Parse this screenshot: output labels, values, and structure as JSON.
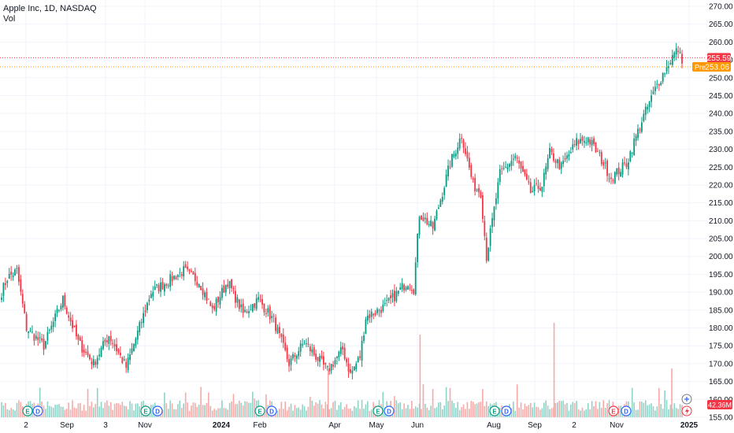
{
  "header": {
    "symbol_line": "Apple Inc, 1D, NASDAQ",
    "volume_label": "Vol"
  },
  "price_badges": {
    "last": "255.59",
    "pre_label": "Pre",
    "pre": "253.06",
    "volume": "42.36M"
  },
  "colors": {
    "up": "#089981",
    "down": "#f23645",
    "pre": "#ff9800",
    "grid": "#f0f3fa"
  },
  "event_markers": {
    "earnings": "E",
    "dividend": "D"
  },
  "chart_data": {
    "type": "candlestick",
    "title": "Apple Inc, 1D, NASDAQ",
    "ylim": [
      155,
      270
    ],
    "y_ticks": [
      270,
      265,
      260,
      255,
      250,
      245,
      240,
      235,
      230,
      225,
      220,
      215,
      210,
      205,
      200,
      195,
      190,
      185,
      180,
      175,
      170,
      165,
      160,
      155
    ],
    "x_labels": [
      {
        "label": "2",
        "bold": false
      },
      {
        "label": "Sep",
        "bold": false
      },
      {
        "label": "3",
        "bold": false
      },
      {
        "label": "Nov",
        "bold": false
      },
      {
        "label": "2024",
        "bold": true
      },
      {
        "label": "Feb",
        "bold": false
      },
      {
        "label": "Apr",
        "bold": false
      },
      {
        "label": "May",
        "bold": false
      },
      {
        "label": "Jun",
        "bold": false
      },
      {
        "label": "Aug",
        "bold": false
      },
      {
        "label": "Sep",
        "bold": false
      },
      {
        "label": "2",
        "bold": false
      },
      {
        "label": "Nov",
        "bold": false
      },
      {
        "label": "2025",
        "bold": true
      }
    ],
    "grid": true,
    "anchors": [
      {
        "idx": 0,
        "price": 190
      },
      {
        "idx": 3,
        "price": 194
      },
      {
        "idx": 8,
        "price": 196
      },
      {
        "idx": 13,
        "price": 180
      },
      {
        "idx": 22,
        "price": 175
      },
      {
        "idx": 32,
        "price": 188
      },
      {
        "idx": 40,
        "price": 176
      },
      {
        "idx": 48,
        "price": 170
      },
      {
        "idx": 56,
        "price": 178
      },
      {
        "idx": 65,
        "price": 169
      },
      {
        "idx": 78,
        "price": 190
      },
      {
        "idx": 95,
        "price": 196
      },
      {
        "idx": 103,
        "price": 193
      },
      {
        "idx": 110,
        "price": 185
      },
      {
        "idx": 118,
        "price": 193
      },
      {
        "idx": 126,
        "price": 184
      },
      {
        "idx": 134,
        "price": 188
      },
      {
        "idx": 142,
        "price": 182
      },
      {
        "idx": 150,
        "price": 170
      },
      {
        "idx": 158,
        "price": 176
      },
      {
        "idx": 170,
        "price": 168
      },
      {
        "idx": 178,
        "price": 174
      },
      {
        "idx": 182,
        "price": 167
      },
      {
        "idx": 187,
        "price": 172
      },
      {
        "idx": 190,
        "price": 183
      },
      {
        "idx": 200,
        "price": 186
      },
      {
        "idx": 212,
        "price": 193
      },
      {
        "idx": 215,
        "price": 191
      },
      {
        "idx": 218,
        "price": 212
      },
      {
        "idx": 225,
        "price": 208
      },
      {
        "idx": 234,
        "price": 226
      },
      {
        "idx": 240,
        "price": 234
      },
      {
        "idx": 246,
        "price": 220
      },
      {
        "idx": 250,
        "price": 218
      },
      {
        "idx": 253,
        "price": 200
      },
      {
        "idx": 260,
        "price": 223
      },
      {
        "idx": 268,
        "price": 228
      },
      {
        "idx": 276,
        "price": 218
      },
      {
        "idx": 282,
        "price": 220
      },
      {
        "idx": 286,
        "price": 229
      },
      {
        "idx": 292,
        "price": 225
      },
      {
        "idx": 300,
        "price": 232
      },
      {
        "idx": 306,
        "price": 233
      },
      {
        "idx": 312,
        "price": 228
      },
      {
        "idx": 318,
        "price": 222
      },
      {
        "idx": 326,
        "price": 226
      },
      {
        "idx": 334,
        "price": 238
      },
      {
        "idx": 342,
        "price": 248
      },
      {
        "idx": 350,
        "price": 256
      },
      {
        "idx": 353,
        "price": 258
      },
      {
        "idx": 355,
        "price": 254
      }
    ],
    "last_price": 255.59,
    "pre_price": 253.06
  }
}
